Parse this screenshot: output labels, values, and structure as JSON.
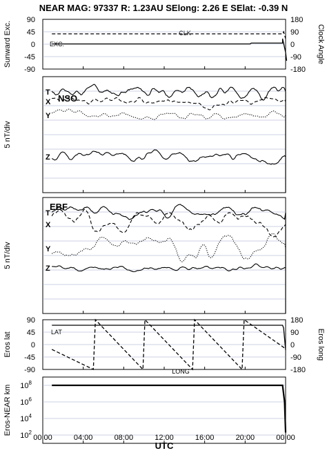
{
  "header": {
    "title": "NEAR MAG: 97337  R: 1.23AU  SElong:    2.26 E  SElat:   -0.39 N"
  },
  "x_axis": {
    "label": "UTC",
    "ticks": [
      "00:00",
      "04:00",
      "08:00",
      "12:00",
      "16:00",
      "20:00",
      "00:00"
    ],
    "range": [
      0,
      24
    ]
  },
  "chart_data": [
    {
      "type": "line",
      "panel": "angles",
      "ylabel_left": "Sunward Exc.",
      "ylabel_right": "Clock Angle",
      "yticks_left": [
        "90",
        "45",
        "0",
        "-45",
        "-90"
      ],
      "yticks_right": [
        "180",
        "90",
        "0",
        "-90",
        "-180"
      ],
      "ylim_left": [
        -90,
        90
      ],
      "ylim_right": [
        -180,
        180
      ],
      "grid": true,
      "series": [
        {
          "name": "EXC.",
          "axis": "left",
          "style": "solid",
          "x": [
            0.9,
            20.5,
            20.6,
            23.7,
            23.7,
            24.0,
            24.1
          ],
          "y": [
            1,
            1,
            4,
            4,
            20,
            -30,
            -60
          ]
        },
        {
          "name": "CLK",
          "axis": "right",
          "style": "dashed",
          "x": [
            0.9,
            23.7,
            23.8,
            24.0
          ],
          "y": [
            75,
            75,
            90,
            40
          ]
        }
      ]
    },
    {
      "type": "line",
      "panel": "NSO",
      "title": "NSO",
      "ylabel": "5 nT/div",
      "grid": true,
      "series": [
        {
          "name": "T",
          "style": "solid",
          "level": 62,
          "amp": 12,
          "seed": 11,
          "smooth": 2
        },
        {
          "name": "X",
          "style": "dashed",
          "level": 48,
          "amp": 12,
          "seed": 23,
          "smooth": 2
        },
        {
          "name": "Y",
          "style": "dotted",
          "level": 28,
          "amp": 9,
          "seed": 37,
          "smooth": 2
        },
        {
          "name": "Z",
          "style": "solid",
          "level": -32,
          "amp": 11,
          "seed": 51,
          "smooth": 2
        }
      ]
    },
    {
      "type": "line",
      "panel": "EBF",
      "title": "EBF",
      "ylabel": "5 nT/div",
      "grid": true,
      "series": [
        {
          "name": "T",
          "style": "solid",
          "level": 62,
          "amp": 12,
          "seed": 61,
          "smooth": 3
        },
        {
          "name": "X",
          "style": "dashed",
          "level": 45,
          "amp": 22,
          "seed": 73,
          "smooth": 5
        },
        {
          "name": "Y",
          "style": "dotted",
          "level": 10,
          "amp": 22,
          "seed": 89,
          "smooth": 5
        },
        {
          "name": "Z",
          "style": "solid",
          "level": -18,
          "amp": 6,
          "seed": 97,
          "smooth": 2
        }
      ]
    },
    {
      "type": "line",
      "panel": "eros-angles",
      "ylabel_left": "Eros lat",
      "ylabel_right": "Eros long",
      "yticks_left": [
        "90",
        "45",
        "0",
        "-45",
        "-90"
      ],
      "yticks_right": [
        "180",
        "90",
        "0",
        "-90",
        "-180"
      ],
      "ylim_left": [
        -90,
        90
      ],
      "ylim_right": [
        -180,
        180
      ],
      "grid": true,
      "series": [
        {
          "name": "LAT",
          "axis": "left",
          "style": "solid",
          "x": [
            0.9,
            23.7,
            23.8,
            24.0
          ],
          "y": [
            70,
            70,
            60,
            -20
          ]
        },
        {
          "name": "LONG",
          "axis": "right",
          "style": "dashed",
          "x": [
            0.9,
            5.0,
            5.2,
            9.9,
            10.1,
            14.8,
            15.0,
            19.7,
            19.9,
            24.0
          ],
          "y": [
            -35,
            -180,
            180,
            -180,
            180,
            -180,
            180,
            -180,
            180,
            -30
          ]
        }
      ]
    },
    {
      "type": "line",
      "panel": "distance",
      "ylabel": "Eros-NEAR km",
      "yscale": "log",
      "yticks": [
        "10^8",
        "10^6",
        "10^4",
        "10^2"
      ],
      "ylim": [
        10,
        1000000000
      ],
      "grid": true,
      "series": [
        {
          "name": "Eros-NEAR km",
          "style": "solid",
          "x": [
            0.9,
            23.7,
            23.9,
            24.0
          ],
          "y": [
            100000000,
            100000000,
            1000000,
            200
          ]
        }
      ]
    }
  ]
}
